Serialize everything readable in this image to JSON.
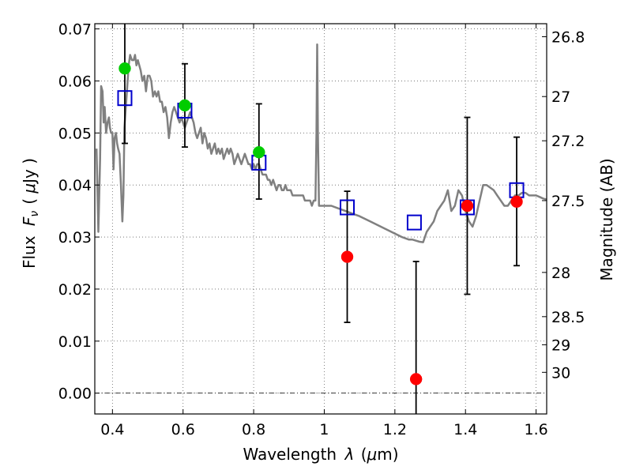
{
  "chart_data": {
    "type": "scatter",
    "xlabel_text": "Wavelength",
    "xlabel_symbol": "λ",
    "xlabel_unit_open": "(",
    "xlabel_unit_mu": "μ",
    "xlabel_unit_rest": "m)",
    "ylabel_text": "Flux",
    "ylabel_symbol": "F",
    "ylabel_sub": "ν",
    "ylabel_unit_open": "(",
    "ylabel_unit_mu": "μ",
    "ylabel_unit_rest": "Jy )",
    "y2label": "Magnitude (AB)",
    "xlim": [
      0.35,
      1.63
    ],
    "ylim": [
      -0.004,
      0.071
    ],
    "x_ticks": [
      {
        "value": 0.4,
        "label": "0.4"
      },
      {
        "value": 0.6,
        "label": "0.6"
      },
      {
        "value": 0.8,
        "label": "0.8"
      },
      {
        "value": 1.0,
        "label": "1"
      },
      {
        "value": 1.2,
        "label": "1.2"
      },
      {
        "value": 1.4,
        "label": "1.4"
      },
      {
        "value": 1.6,
        "label": "1.6"
      }
    ],
    "y_ticks": [
      {
        "value": 0.0,
        "label": "0.00"
      },
      {
        "value": 0.01,
        "label": "0.01"
      },
      {
        "value": 0.02,
        "label": "0.02"
      },
      {
        "value": 0.03,
        "label": "0.03"
      },
      {
        "value": 0.04,
        "label": "0.04"
      },
      {
        "value": 0.05,
        "label": "0.05"
      },
      {
        "value": 0.06,
        "label": "0.06"
      },
      {
        "value": 0.07,
        "label": "0.07"
      }
    ],
    "mag_ticks": [
      {
        "flux": 0.0685,
        "label": "26.8"
      },
      {
        "flux": 0.057,
        "label": "27"
      },
      {
        "flux": 0.0485,
        "label": "27.2"
      },
      {
        "flux": 0.037,
        "label": "27.5"
      },
      {
        "flux": 0.0232,
        "label": "28"
      },
      {
        "flux": 0.0147,
        "label": "28.5"
      },
      {
        "flux": 0.0093,
        "label": "29"
      },
      {
        "flux": 0.004,
        "label": "30"
      }
    ],
    "series": [
      {
        "name": "template-spectrum",
        "kind": "line",
        "color": "#808080",
        "points": [
          [
            0.355,
            0.047
          ],
          [
            0.36,
            0.031
          ],
          [
            0.365,
            0.045
          ],
          [
            0.368,
            0.059
          ],
          [
            0.372,
            0.058
          ],
          [
            0.375,
            0.052
          ],
          [
            0.378,
            0.055
          ],
          [
            0.382,
            0.05
          ],
          [
            0.386,
            0.052
          ],
          [
            0.39,
            0.053
          ],
          [
            0.393,
            0.051
          ],
          [
            0.396,
            0.05
          ],
          [
            0.4,
            0.05
          ],
          [
            0.403,
            0.043
          ],
          [
            0.406,
            0.049
          ],
          [
            0.41,
            0.05
          ],
          [
            0.413,
            0.048
          ],
          [
            0.416,
            0.047
          ],
          [
            0.42,
            0.046
          ],
          [
            0.424,
            0.04
          ],
          [
            0.428,
            0.033
          ],
          [
            0.431,
            0.038
          ],
          [
            0.434,
            0.051
          ],
          [
            0.438,
            0.055
          ],
          [
            0.442,
            0.059
          ],
          [
            0.446,
            0.063
          ],
          [
            0.45,
            0.065
          ],
          [
            0.455,
            0.064
          ],
          [
            0.46,
            0.064
          ],
          [
            0.464,
            0.065
          ],
          [
            0.468,
            0.063
          ],
          [
            0.472,
            0.064
          ],
          [
            0.476,
            0.063
          ],
          [
            0.48,
            0.062
          ],
          [
            0.485,
            0.06
          ],
          [
            0.49,
            0.061
          ],
          [
            0.495,
            0.058
          ],
          [
            0.5,
            0.061
          ],
          [
            0.505,
            0.061
          ],
          [
            0.51,
            0.06
          ],
          [
            0.515,
            0.057
          ],
          [
            0.52,
            0.058
          ],
          [
            0.525,
            0.057
          ],
          [
            0.53,
            0.058
          ],
          [
            0.535,
            0.056
          ],
          [
            0.54,
            0.056
          ],
          [
            0.545,
            0.054
          ],
          [
            0.55,
            0.055
          ],
          [
            0.555,
            0.053
          ],
          [
            0.56,
            0.049
          ],
          [
            0.565,
            0.052
          ],
          [
            0.57,
            0.054
          ],
          [
            0.575,
            0.055
          ],
          [
            0.58,
            0.054
          ],
          [
            0.585,
            0.053
          ],
          [
            0.59,
            0.052
          ],
          [
            0.595,
            0.053
          ],
          [
            0.6,
            0.052
          ],
          [
            0.605,
            0.051
          ],
          [
            0.61,
            0.052
          ],
          [
            0.615,
            0.053
          ],
          [
            0.62,
            0.054
          ],
          [
            0.625,
            0.053
          ],
          [
            0.63,
            0.052
          ],
          [
            0.635,
            0.05
          ],
          [
            0.64,
            0.049
          ],
          [
            0.645,
            0.05
          ],
          [
            0.65,
            0.051
          ],
          [
            0.655,
            0.048
          ],
          [
            0.66,
            0.05
          ],
          [
            0.665,
            0.049
          ],
          [
            0.67,
            0.047
          ],
          [
            0.675,
            0.048
          ],
          [
            0.68,
            0.046
          ],
          [
            0.685,
            0.047
          ],
          [
            0.69,
            0.048
          ],
          [
            0.695,
            0.046
          ],
          [
            0.7,
            0.047
          ],
          [
            0.705,
            0.046
          ],
          [
            0.71,
            0.047
          ],
          [
            0.715,
            0.045
          ],
          [
            0.72,
            0.046
          ],
          [
            0.725,
            0.047
          ],
          [
            0.73,
            0.046
          ],
          [
            0.735,
            0.047
          ],
          [
            0.74,
            0.046
          ],
          [
            0.745,
            0.044
          ],
          [
            0.75,
            0.045
          ],
          [
            0.755,
            0.046
          ],
          [
            0.76,
            0.045
          ],
          [
            0.765,
            0.044
          ],
          [
            0.77,
            0.045
          ],
          [
            0.775,
            0.046
          ],
          [
            0.78,
            0.045
          ],
          [
            0.785,
            0.044
          ],
          [
            0.79,
            0.044
          ],
          [
            0.795,
            0.043
          ],
          [
            0.8,
            0.044
          ],
          [
            0.805,
            0.043
          ],
          [
            0.81,
            0.044
          ],
          [
            0.815,
            0.044
          ],
          [
            0.82,
            0.043
          ],
          [
            0.825,
            0.042
          ],
          [
            0.83,
            0.042
          ],
          [
            0.835,
            0.042
          ],
          [
            0.84,
            0.041
          ],
          [
            0.845,
            0.041
          ],
          [
            0.85,
            0.04
          ],
          [
            0.855,
            0.041
          ],
          [
            0.86,
            0.04
          ],
          [
            0.865,
            0.039
          ],
          [
            0.87,
            0.04
          ],
          [
            0.875,
            0.04
          ],
          [
            0.88,
            0.039
          ],
          [
            0.885,
            0.039
          ],
          [
            0.89,
            0.04
          ],
          [
            0.895,
            0.039
          ],
          [
            0.9,
            0.039
          ],
          [
            0.905,
            0.039
          ],
          [
            0.91,
            0.038
          ],
          [
            0.915,
            0.038
          ],
          [
            0.92,
            0.038
          ],
          [
            0.925,
            0.038
          ],
          [
            0.93,
            0.038
          ],
          [
            0.935,
            0.038
          ],
          [
            0.94,
            0.038
          ],
          [
            0.945,
            0.037
          ],
          [
            0.95,
            0.037
          ],
          [
            0.955,
            0.037
          ],
          [
            0.96,
            0.037
          ],
          [
            0.965,
            0.036
          ],
          [
            0.97,
            0.037
          ],
          [
            0.975,
            0.037
          ],
          [
            0.978,
            0.05
          ],
          [
            0.98,
            0.067
          ],
          [
            0.982,
            0.05
          ],
          [
            0.985,
            0.036
          ],
          [
            0.99,
            0.036
          ],
          [
            1.0,
            0.036
          ],
          [
            1.02,
            0.036
          ],
          [
            1.04,
            0.0355
          ],
          [
            1.06,
            0.035
          ],
          [
            1.08,
            0.0345
          ],
          [
            1.1,
            0.034
          ],
          [
            1.13,
            0.033
          ],
          [
            1.16,
            0.032
          ],
          [
            1.19,
            0.031
          ],
          [
            1.22,
            0.03
          ],
          [
            1.24,
            0.0295
          ],
          [
            1.25,
            0.0295
          ],
          [
            1.26,
            0.0293
          ],
          [
            1.27,
            0.0291
          ],
          [
            1.28,
            0.029
          ],
          [
            1.29,
            0.031
          ],
          [
            1.3,
            0.032
          ],
          [
            1.31,
            0.033
          ],
          [
            1.32,
            0.035
          ],
          [
            1.33,
            0.036
          ],
          [
            1.34,
            0.037
          ],
          [
            1.35,
            0.039
          ],
          [
            1.36,
            0.035
          ],
          [
            1.37,
            0.036
          ],
          [
            1.38,
            0.039
          ],
          [
            1.39,
            0.038
          ],
          [
            1.4,
            0.035
          ],
          [
            1.41,
            0.033
          ],
          [
            1.42,
            0.032
          ],
          [
            1.43,
            0.034
          ],
          [
            1.44,
            0.037
          ],
          [
            1.45,
            0.04
          ],
          [
            1.46,
            0.04
          ],
          [
            1.47,
            0.0395
          ],
          [
            1.48,
            0.039
          ],
          [
            1.49,
            0.038
          ],
          [
            1.5,
            0.037
          ],
          [
            1.51,
            0.036
          ],
          [
            1.52,
            0.036
          ],
          [
            1.53,
            0.037
          ],
          [
            1.54,
            0.038
          ],
          [
            1.55,
            0.038
          ],
          [
            1.56,
            0.0385
          ],
          [
            1.57,
            0.0385
          ],
          [
            1.58,
            0.038
          ],
          [
            1.59,
            0.038
          ],
          [
            1.6,
            0.038
          ],
          [
            1.61,
            0.0377
          ],
          [
            1.62,
            0.0374
          ],
          [
            1.63,
            0.0372
          ]
        ]
      },
      {
        "name": "model-photometry",
        "kind": "open-square",
        "color": "#0000cc",
        "x": [
          0.435,
          0.605,
          0.815,
          1.065,
          1.255,
          1.405,
          1.545
        ],
        "y": [
          0.0567,
          0.0543,
          0.0443,
          0.0357,
          0.0328,
          0.0357,
          0.039
        ]
      },
      {
        "name": "detections",
        "kind": "filled-circle",
        "color": "#00cc00",
        "x": [
          0.435,
          0.605,
          0.815
        ],
        "y": [
          0.0624,
          0.0553,
          0.0463
        ]
      },
      {
        "name": "nondetections",
        "kind": "filled-circle",
        "color": "#ff0000",
        "x": [
          1.065,
          1.26,
          1.405,
          1.545
        ],
        "y": [
          0.0262,
          0.0027,
          0.036,
          0.0368
        ]
      }
    ],
    "errorbars": [
      {
        "x": 0.435,
        "lo": 0.048,
        "hi": 0.071
      },
      {
        "x": 0.605,
        "lo": 0.0473,
        "hi": 0.0633
      },
      {
        "x": 0.815,
        "lo": 0.0373,
        "hi": 0.0556
      },
      {
        "x": 1.065,
        "lo": 0.0136,
        "hi": 0.0388
      },
      {
        "x": 1.26,
        "lo": -0.004,
        "hi": 0.0253
      },
      {
        "x": 1.405,
        "lo": 0.019,
        "hi": 0.053
      },
      {
        "x": 1.545,
        "lo": 0.0245,
        "hi": 0.0492
      }
    ],
    "grid": true
  }
}
